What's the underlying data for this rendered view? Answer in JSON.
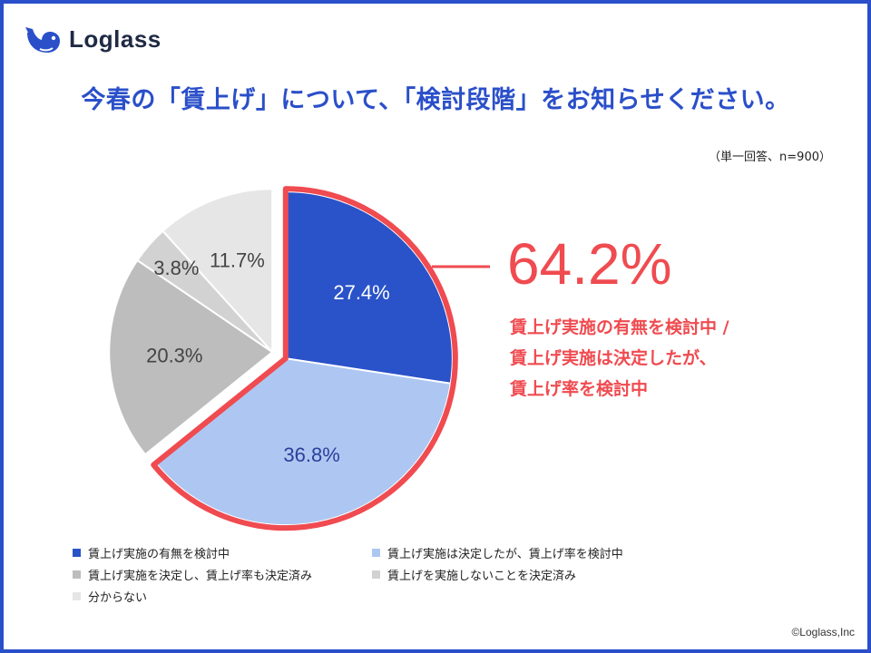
{
  "brand": {
    "logo_text": "Loglass",
    "copyright": "©Loglass,Inc"
  },
  "title": "今春の「賃上げ」について、「検討段階」をお知らせください。",
  "note": "（単一回答、n=900）",
  "colors": {
    "frame": "#2a4fc9",
    "title": "#2a4fc9",
    "highlight": "#ef4b50"
  },
  "callout": {
    "value": "64.2%",
    "lines": [
      "賃上げ実施の有無を検討中 /",
      "賃上げ実施は決定したが、",
      "賃上げ率を検討中"
    ]
  },
  "chart_data": {
    "type": "pie",
    "start_angle_deg": 0,
    "direction": "clockwise",
    "highlighted_slices": [
      0,
      1
    ],
    "slices": [
      {
        "label": "賃上げ実施の有無を検討中",
        "value": 27.4,
        "display": "27.4%",
        "color": "#2a52c9",
        "text_color": "#ffffff"
      },
      {
        "label": "賃上げ実施は決定したが、賃上げ率を検討中",
        "value": 36.8,
        "display": "36.8%",
        "color": "#aec7f2",
        "text_color": "#2a3f9a"
      },
      {
        "label": "賃上げ実施を決定し、賃上げ率も決定済み",
        "value": 20.3,
        "display": "20.3%",
        "color": "#bdbdbd",
        "text_color": "#444444"
      },
      {
        "label": "賃上げを実施しないことを決定済み",
        "value": 3.8,
        "display": "3.8%",
        "color": "#d2d2d2",
        "text_color": "#444444"
      },
      {
        "label": "分からない",
        "value": 11.7,
        "display": "11.7%",
        "color": "#e6e6e6",
        "text_color": "#444444"
      }
    ],
    "legend": [
      "賃上げ実施の有無を検討中",
      "賃上げ実施は決定したが、賃上げ率を検討中",
      "賃上げ実施を決定し、賃上げ率も決定済み",
      "賃上げを実施しないことを決定済み",
      "分からない"
    ]
  }
}
